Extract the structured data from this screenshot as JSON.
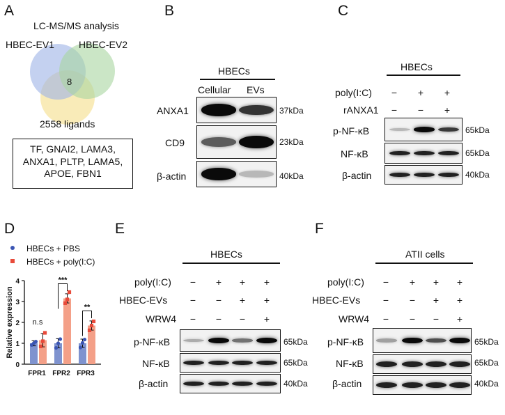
{
  "panels": {
    "A": {
      "label": "A",
      "title": "LC-MS/MS analysis",
      "venn": {
        "set1": "HBEC-EV1",
        "set2": "HBEC-EV2",
        "set3": "2558 ligands",
        "intersection": "8",
        "colors": [
          "#9db3e6",
          "#a8d6a0",
          "#f6e39a"
        ]
      },
      "ligand_lines": [
        "TF, GNAI2, LAMA3,",
        "ANXA1, PLTP, LAMA5,",
        "APOE, FBN1"
      ]
    },
    "B": {
      "label": "B",
      "header": "HBECs",
      "columns": [
        "Cellular",
        "EVs"
      ],
      "rows": [
        {
          "name": "ANXA1",
          "size": "37kDa",
          "intensities": [
            0.95,
            0.72
          ]
        },
        {
          "name": "CD9",
          "size": "23kDa",
          "intensities": [
            0.55,
            1.0
          ]
        },
        {
          "name": "β-actin",
          "size": "40kDa",
          "intensities": [
            0.95,
            0.15
          ]
        }
      ]
    },
    "C": {
      "label": "C",
      "header": "HBECs",
      "treatments": [
        {
          "name": "poly(I:C)",
          "signs": [
            "−",
            "+",
            "+"
          ]
        },
        {
          "name": "rANXA1",
          "signs": [
            "−",
            "−",
            "+"
          ]
        }
      ],
      "rows": [
        {
          "name": "p-NF-κB",
          "size": "65kDa",
          "intensities": [
            0.15,
            0.9,
            0.7
          ]
        },
        {
          "name": "NF-κB",
          "size": "65kDa",
          "intensities": [
            0.8,
            0.8,
            0.8
          ]
        },
        {
          "name": "β-actin",
          "size": "40kDa",
          "intensities": [
            0.8,
            0.8,
            0.8
          ]
        }
      ]
    },
    "D": {
      "label": "D",
      "legend": [
        "HBECs + PBS",
        "HBECs + poly(I:C)"
      ],
      "significance": [
        "n.s",
        "***",
        "**"
      ]
    },
    "E": {
      "label": "E",
      "header": "HBECs",
      "treatments": [
        {
          "name": "poly(I:C)",
          "signs": [
            "−",
            "+",
            "+",
            "+"
          ]
        },
        {
          "name": "HBEC-EVs",
          "signs": [
            "−",
            "−",
            "+",
            "+"
          ]
        },
        {
          "name": "WRW4",
          "signs": [
            "−",
            "−",
            "−",
            "+"
          ]
        }
      ],
      "rows": [
        {
          "name": "p-NF-κB",
          "size": "65kDa",
          "intensities": [
            0.2,
            0.95,
            0.45,
            1.0
          ]
        },
        {
          "name": "NF-κB",
          "size": "65kDa",
          "intensities": [
            0.8,
            0.8,
            0.8,
            0.8
          ]
        },
        {
          "name": "β-actin",
          "size": "40kDa",
          "intensities": [
            0.8,
            0.8,
            0.8,
            0.8
          ]
        }
      ]
    },
    "F": {
      "label": "F",
      "header": "ATII cells",
      "treatments": [
        {
          "name": "poly(I:C)",
          "signs": [
            "−",
            "+",
            "+",
            "+"
          ]
        },
        {
          "name": "HBEC-EVs",
          "signs": [
            "−",
            "−",
            "+",
            "+"
          ]
        },
        {
          "name": "WRW4",
          "signs": [
            "−",
            "−",
            "−",
            "+"
          ]
        }
      ],
      "rows": [
        {
          "name": "p-NF-κB",
          "size": "65kDa",
          "intensities": [
            0.25,
            1.0,
            0.6,
            0.95
          ]
        },
        {
          "name": "NF-κB",
          "size": "65kDa",
          "intensities": [
            0.8,
            0.8,
            0.8,
            0.8
          ]
        },
        {
          "name": "β-actin",
          "size": "40kDa",
          "intensities": [
            0.8,
            0.8,
            0.8,
            0.8
          ]
        }
      ]
    }
  },
  "chart_data": {
    "type": "bar",
    "categories": [
      "FPR1",
      "FPR2",
      "FPR3"
    ],
    "ylabel": "Relative expression",
    "ylim": [
      0,
      4
    ],
    "yticks": [
      0,
      1,
      2,
      3,
      4
    ],
    "grid": false,
    "legend_position": "top-left",
    "series": [
      {
        "name": "HBECs + PBS",
        "color": "#7f93cf",
        "marker_color": "#3b55b3",
        "values": [
          1.0,
          1.0,
          1.0
        ],
        "errors": [
          0.12,
          0.22,
          0.2
        ],
        "points": [
          [
            0.92,
            1.0,
            1.08
          ],
          [
            0.78,
            1.0,
            1.2
          ],
          [
            0.8,
            1.02,
            1.18
          ]
        ]
      },
      {
        "name": "HBECs + poly(I:C)",
        "color": "#f4a088",
        "marker_color": "#e84a3a",
        "values": [
          1.15,
          3.15,
          1.85
        ],
        "errors": [
          0.32,
          0.22,
          0.22
        ],
        "points": [
          [
            0.85,
            1.1,
            1.5
          ],
          [
            2.92,
            3.1,
            3.45
          ],
          [
            1.62,
            1.85,
            2.05
          ]
        ]
      }
    ]
  }
}
